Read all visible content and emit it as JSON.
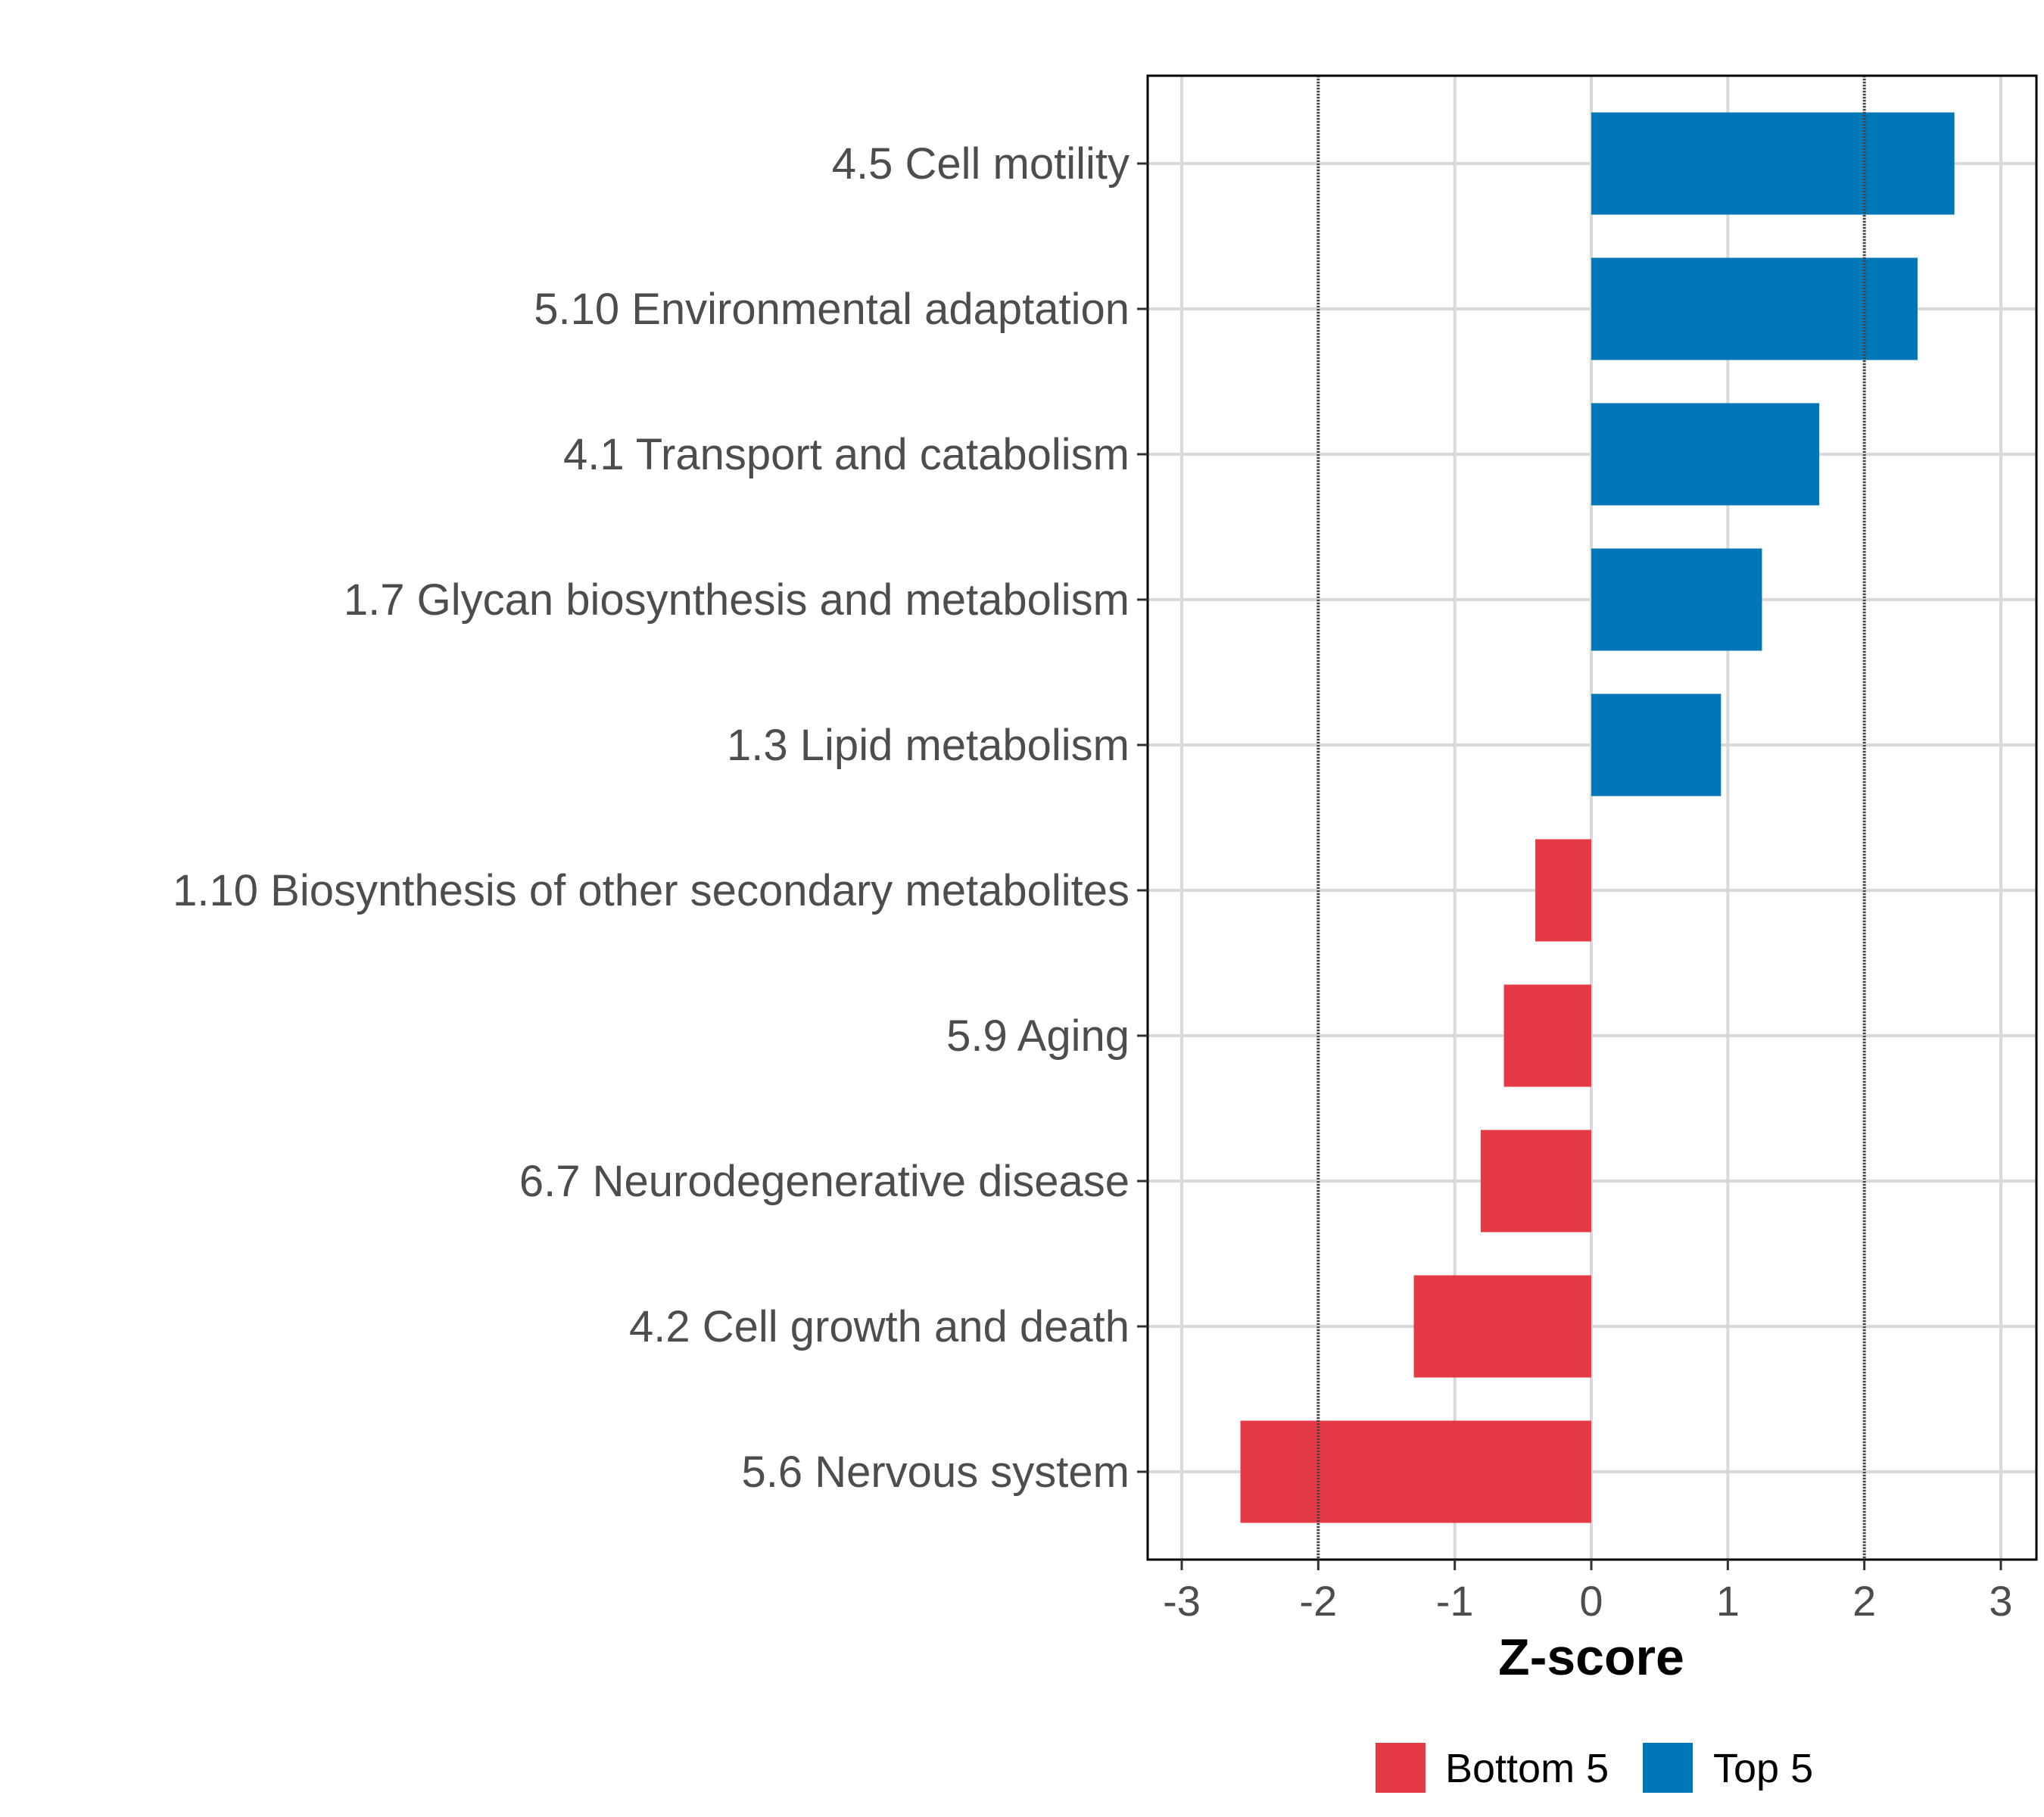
{
  "chart_data": {
    "type": "bar",
    "orientation": "horizontal",
    "title": "",
    "xlabel": "Z-score",
    "ylabel": "",
    "xlim": [
      -3.3,
      3.3
    ],
    "xticks": [
      -3,
      -2,
      -1,
      0,
      1,
      2,
      3
    ],
    "xtick_labels": [
      "-3",
      "-2",
      "-1",
      "0",
      "1",
      "2",
      "3"
    ],
    "reference_lines": [
      -2,
      2
    ],
    "grid": true,
    "legend_position": "bottom",
    "categories": [
      "4.5 Cell motility",
      "5.10 Environmental adaptation",
      "4.1 Transport and catabolism",
      "1.7 Glycan biosynthesis and metabolism",
      "1.3 Lipid metabolism",
      "1.10 Biosynthesis of other secondary metabolites",
      "5.9 Aging",
      "6.7 Neurodegenerative disease",
      "4.2 Cell growth and death",
      "5.6 Nervous system"
    ],
    "values": [
      2.66,
      2.39,
      1.67,
      1.25,
      0.95,
      -0.41,
      -0.64,
      -0.81,
      -1.3,
      -2.57
    ],
    "groups": [
      "Top 5",
      "Top 5",
      "Top 5",
      "Top 5",
      "Top 5",
      "Bottom 5",
      "Bottom 5",
      "Bottom 5",
      "Bottom 5",
      "Bottom 5"
    ],
    "legend": [
      {
        "name": "Bottom 5",
        "color": "#E63946"
      },
      {
        "name": "Top 5",
        "color": "#0077B6"
      }
    ]
  }
}
